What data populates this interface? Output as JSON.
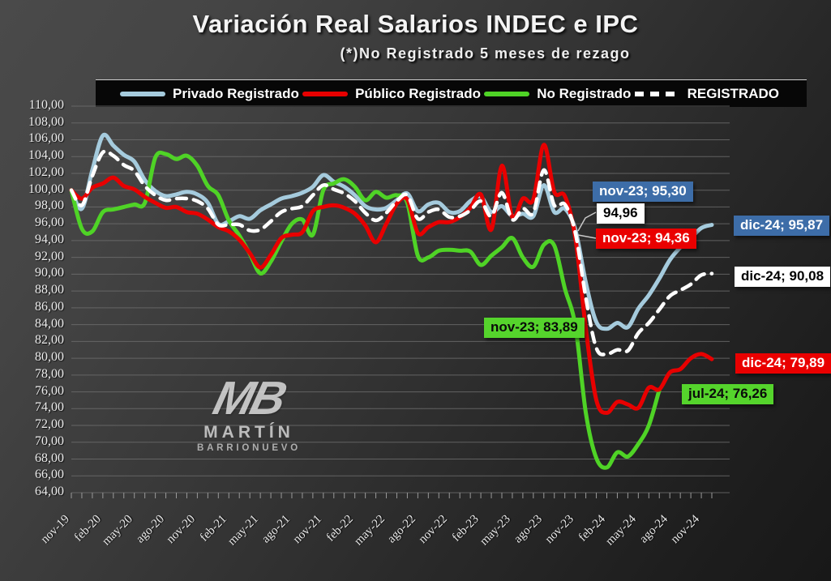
{
  "header": {
    "title": "Variación Real Salarios INDEC e IPC",
    "subtitle": "(*)No Registrado 5 meses de rezago"
  },
  "legend": {
    "items": [
      {
        "label": "Privado Registrado"
      },
      {
        "label": "Público Registrado"
      },
      {
        "label": "No Registrado"
      },
      {
        "label": "REGISTRADO"
      }
    ]
  },
  "watermark": {
    "logo": "MB",
    "line1": "MARTÍN",
    "line2": "BARRIONUEVO"
  },
  "chart_data": {
    "type": "line",
    "title": "Variación Real Salarios INDEC e IPC",
    "subtitle": "(*)No Registrado 5 meses de rezago",
    "ylim": [
      64,
      110
    ],
    "grid": true,
    "legend_position": "top",
    "y_tick_labels": [
      "110,00",
      "108,00",
      "106,00",
      "104,00",
      "102,00",
      "100,00",
      "98,00",
      "96,00",
      "94,00",
      "92,00",
      "90,00",
      "88,00",
      "86,00",
      "84,00",
      "82,00",
      "80,00",
      "78,00",
      "76,00",
      "74,00",
      "72,00",
      "70,00",
      "68,00",
      "66,00",
      "64,00"
    ],
    "x_tick_labels": [
      "nov-19",
      "feb-20",
      "may-20",
      "ago-20",
      "nov-20",
      "feb-21",
      "may-21",
      "ago-21",
      "nov-21",
      "feb-22",
      "may-22",
      "ago-22",
      "nov-22",
      "feb-23",
      "may-23",
      "ago-23",
      "nov-23",
      "feb-24",
      "may-24",
      "ago-24",
      "nov-24"
    ],
    "months": [
      "nov-19",
      "dic-19",
      "ene-20",
      "feb-20",
      "mar-20",
      "abr-20",
      "may-20",
      "jun-20",
      "jul-20",
      "ago-20",
      "sep-20",
      "oct-20",
      "nov-20",
      "dic-20",
      "ene-21",
      "feb-21",
      "mar-21",
      "abr-21",
      "may-21",
      "jun-21",
      "jul-21",
      "ago-21",
      "sep-21",
      "oct-21",
      "nov-21",
      "dic-21",
      "ene-22",
      "feb-22",
      "mar-22",
      "abr-22",
      "may-22",
      "jun-22",
      "jul-22",
      "ago-22",
      "sep-22",
      "oct-22",
      "nov-22",
      "dic-22",
      "ene-23",
      "feb-23",
      "mar-23",
      "abr-23",
      "may-23",
      "jun-23",
      "jul-23",
      "ago-23",
      "sep-23",
      "oct-23",
      "nov-23",
      "dic-23",
      "ene-24",
      "feb-24",
      "mar-24",
      "abr-24",
      "may-24",
      "jun-24",
      "jul-24",
      "ago-24",
      "sep-24",
      "oct-24",
      "nov-24",
      "dic-24"
    ],
    "series": [
      {
        "name": "Privado Registrado",
        "color": "#a5cbdd",
        "dash": false,
        "width": 5,
        "values": [
          100.0,
          97.8,
          102.4,
          106.5,
          105.3,
          104.2,
          103.4,
          101.2,
          99.9,
          99.3,
          99.5,
          99.8,
          99.5,
          98.5,
          96.0,
          96.3,
          96.9,
          96.6,
          97.6,
          98.3,
          99.0,
          99.3,
          99.7,
          100.4,
          101.8,
          101.0,
          100.4,
          99.4,
          98.1,
          97.7,
          97.9,
          98.8,
          99.6,
          97.5,
          98.3,
          98.5,
          97.4,
          97.5,
          98.7,
          99.2,
          97.4,
          98.1,
          96.9,
          97.2,
          96.9,
          100.6,
          97.4,
          97.8,
          95.3,
          89.0,
          84.3,
          83.5,
          84.2,
          83.7,
          85.9,
          87.5,
          89.5,
          91.7,
          93.2,
          94.3,
          95.5,
          95.87
        ]
      },
      {
        "name": "Público Registrado",
        "color": "#e80000",
        "dash": false,
        "width": 5,
        "values": [
          100.0,
          99.0,
          100.3,
          100.8,
          101.5,
          100.5,
          100.1,
          99.2,
          98.5,
          97.9,
          98.0,
          97.4,
          97.2,
          96.5,
          95.6,
          95.1,
          94.1,
          92.5,
          90.8,
          92.3,
          94.3,
          94.7,
          95.0,
          97.5,
          98.0,
          98.2,
          97.9,
          97.2,
          95.8,
          93.8,
          96.0,
          98.4,
          98.9,
          94.9,
          95.6,
          96.2,
          96.2,
          96.8,
          97.9,
          99.5,
          95.3,
          102.9,
          96.8,
          99.0,
          98.9,
          105.4,
          99.8,
          99.3,
          94.36,
          83.5,
          75.0,
          73.5,
          74.8,
          74.5,
          74.1,
          76.5,
          76.3,
          78.3,
          78.7,
          80.0,
          80.5,
          79.89
        ]
      },
      {
        "name": "No Registrado",
        "color": "#4fd326",
        "dash": false,
        "width": 5,
        "values": [
          100.0,
          95.4,
          95.1,
          97.4,
          97.7,
          98.0,
          98.3,
          98.5,
          103.9,
          104.3,
          103.7,
          104.1,
          102.9,
          100.5,
          99.4,
          96.4,
          94.6,
          92.4,
          90.1,
          91.5,
          93.9,
          96.0,
          96.5,
          94.7,
          100.0,
          100.8,
          101.3,
          100.4,
          98.8,
          99.8,
          99.1,
          99.4,
          98.5,
          92.2,
          92.0,
          92.8,
          92.9,
          92.8,
          92.7,
          91.1,
          92.2,
          93.2,
          94.3,
          92.0,
          90.9,
          93.5,
          93.4,
          88.3,
          83.89,
          73.5,
          68.1,
          67.0,
          68.8,
          68.3,
          69.8,
          72.0,
          76.26
        ]
      },
      {
        "name": "REGISTRADO",
        "color": "#ffffff",
        "dash": true,
        "width": 4.5,
        "values": [
          100.0,
          98.2,
          101.7,
          104.5,
          104.1,
          103.0,
          102.3,
          100.5,
          99.4,
          98.8,
          99.0,
          99.0,
          98.7,
          97.8,
          95.9,
          95.9,
          95.9,
          95.2,
          95.3,
          96.3,
          97.4,
          97.8,
          98.1,
          99.4,
          100.6,
          100.1,
          99.6,
          98.7,
          97.3,
          96.4,
          97.3,
          98.7,
          99.4,
          96.6,
          97.4,
          97.7,
          96.8,
          96.9,
          97.6,
          98.7,
          96.9,
          99.7,
          96.5,
          97.8,
          97.3,
          102.4,
          98.2,
          98.3,
          94.96,
          87.2,
          81.2,
          80.5,
          81.0,
          80.9,
          83.0,
          84.2,
          85.8,
          87.4,
          88.1,
          88.8,
          89.9,
          90.08
        ]
      }
    ],
    "annotations": [
      {
        "text": "nov-23; 95,30",
        "series": "Privado Registrado",
        "month": "nov-23",
        "value": 95.3
      },
      {
        "text": "94,96",
        "series": "REGISTRADO",
        "month": "nov-23",
        "value": 94.96
      },
      {
        "text": "nov-23; 94,36",
        "series": "Público Registrado",
        "month": "nov-23",
        "value": 94.36
      },
      {
        "text": "dic-24; 95,87",
        "series": "Privado Registrado",
        "month": "dic-24",
        "value": 95.87
      },
      {
        "text": "dic-24; 90,08",
        "series": "REGISTRADO",
        "month": "dic-24",
        "value": 90.08
      },
      {
        "text": "nov-23; 83,89",
        "series": "No Registrado",
        "month": "nov-23",
        "value": 83.89
      },
      {
        "text": "dic-24; 79,89",
        "series": "Público Registrado",
        "month": "dic-24",
        "value": 79.89
      },
      {
        "text": "jul-24; 76,26",
        "series": "No Registrado",
        "month": "jul-24",
        "value": 76.26
      }
    ]
  }
}
